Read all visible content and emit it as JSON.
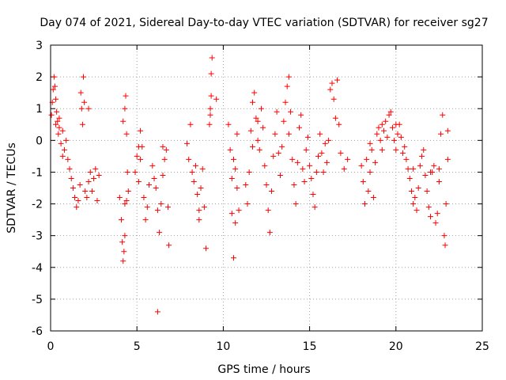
{
  "chart_data": {
    "type": "scatter",
    "title": "Day 074 of 2021, Sidereal Day-to-day VTEC variation (SDTVAR) for receiver sg27",
    "xlabel": "GPS time / hours",
    "ylabel": "SDTVAR / TECUs",
    "xlim": [
      0,
      25
    ],
    "ylim": [
      -6,
      3
    ],
    "xticks": [
      "0",
      "5",
      "10",
      "15",
      "20",
      "25"
    ],
    "yticks": [
      "3",
      "2",
      "1",
      "0",
      "-1",
      "-2",
      "-3",
      "-4",
      "-5",
      "-6"
    ],
    "grid": true,
    "marker": "+",
    "color": "#ff0000",
    "series": [
      {
        "name": "sg27",
        "points": [
          [
            0.05,
            0.8
          ],
          [
            0.1,
            1.2
          ],
          [
            0.15,
            1.6
          ],
          [
            0.2,
            2.0
          ],
          [
            0.25,
            1.7
          ],
          [
            0.3,
            1.3
          ],
          [
            0.35,
            0.9
          ],
          [
            0.4,
            0.6
          ],
          [
            0.45,
            0.2
          ],
          [
            0.5,
            0.4
          ],
          [
            0.6,
            -0.1
          ],
          [
            0.7,
            0.3
          ],
          [
            0.8,
            -0.3
          ],
          [
            0.9,
            0.0
          ],
          [
            1.0,
            -0.6
          ],
          [
            1.1,
            -0.9
          ],
          [
            1.2,
            -1.2
          ],
          [
            1.3,
            -1.5
          ],
          [
            1.4,
            -1.8
          ],
          [
            1.5,
            -2.1
          ],
          [
            1.6,
            -1.9
          ],
          [
            1.7,
            -1.4
          ],
          [
            1.75,
            1.5
          ],
          [
            1.8,
            1.0
          ],
          [
            1.85,
            0.5
          ],
          [
            1.9,
            2.0
          ],
          [
            1.95,
            1.2
          ],
          [
            2.0,
            -1.6
          ],
          [
            2.1,
            -1.8
          ],
          [
            2.2,
            -1.3
          ],
          [
            2.3,
            -1.0
          ],
          [
            2.4,
            -1.6
          ],
          [
            2.5,
            -1.2
          ],
          [
            2.6,
            -0.9
          ],
          [
            2.7,
            -1.9
          ],
          [
            2.8,
            -1.1
          ],
          [
            2.2,
            1.0
          ],
          [
            0.3,
            0.5
          ],
          [
            0.5,
            0.7
          ],
          [
            0.7,
            -0.5
          ],
          [
            4.0,
            -1.8
          ],
          [
            4.1,
            -2.5
          ],
          [
            4.15,
            -3.2
          ],
          [
            4.2,
            -3.8
          ],
          [
            4.25,
            -3.5
          ],
          [
            4.3,
            -2.0
          ],
          [
            4.2,
            0.6
          ],
          [
            4.3,
            1.0
          ],
          [
            4.35,
            1.4
          ],
          [
            4.4,
            0.2
          ],
          [
            4.45,
            -1.0
          ],
          [
            4.5,
            -1.6
          ],
          [
            4.3,
            -3.0
          ],
          [
            4.4,
            -1.9
          ],
          [
            4.9,
            -1.0
          ],
          [
            5.0,
            -0.5
          ],
          [
            5.1,
            -1.3
          ],
          [
            5.2,
            -0.6
          ],
          [
            5.3,
            -0.2
          ],
          [
            5.4,
            -1.8
          ],
          [
            5.5,
            -2.5
          ],
          [
            5.6,
            -2.1
          ],
          [
            5.7,
            -1.4
          ],
          [
            5.1,
            -0.2
          ],
          [
            5.2,
            0.3
          ],
          [
            5.9,
            -0.8
          ],
          [
            6.0,
            -1.2
          ],
          [
            6.1,
            -1.5
          ],
          [
            6.2,
            -2.2
          ],
          [
            6.3,
            -2.9
          ],
          [
            6.4,
            -2.0
          ],
          [
            6.5,
            -1.1
          ],
          [
            6.6,
            -0.6
          ],
          [
            6.7,
            -0.3
          ],
          [
            6.8,
            -2.1
          ],
          [
            6.85,
            -3.3
          ],
          [
            6.2,
            -5.4
          ],
          [
            6.5,
            -0.2
          ],
          [
            7.9,
            -0.1
          ],
          [
            8.0,
            -0.6
          ],
          [
            8.1,
            0.5
          ],
          [
            8.2,
            -1.0
          ],
          [
            8.3,
            -1.3
          ],
          [
            8.4,
            -0.8
          ],
          [
            8.5,
            -1.7
          ],
          [
            8.6,
            -2.2
          ],
          [
            8.7,
            -1.5
          ],
          [
            8.8,
            -0.9
          ],
          [
            8.9,
            -2.1
          ],
          [
            8.6,
            -2.5
          ],
          [
            9.2,
            0.5
          ],
          [
            9.25,
            1.0
          ],
          [
            9.3,
            1.4
          ],
          [
            9.3,
            2.1
          ],
          [
            9.35,
            2.6
          ],
          [
            9.25,
            0.8
          ],
          [
            9.0,
            -3.4
          ],
          [
            9.6,
            1.3
          ],
          [
            10.3,
            0.5
          ],
          [
            10.4,
            -0.3
          ],
          [
            10.5,
            -1.2
          ],
          [
            10.6,
            -0.6
          ],
          [
            10.7,
            -0.9
          ],
          [
            10.8,
            -1.5
          ],
          [
            10.9,
            -2.2
          ],
          [
            10.6,
            -3.7
          ],
          [
            10.7,
            -2.6
          ],
          [
            10.5,
            -2.3
          ],
          [
            10.8,
            0.2
          ],
          [
            11.3,
            -1.4
          ],
          [
            11.4,
            -2.0
          ],
          [
            11.5,
            -1.0
          ],
          [
            11.6,
            0.3
          ],
          [
            11.7,
            1.2
          ],
          [
            11.8,
            1.5
          ],
          [
            11.9,
            0.7
          ],
          [
            12.0,
            0.0
          ],
          [
            12.1,
            -0.3
          ],
          [
            12.2,
            1.0
          ],
          [
            12.3,
            0.4
          ],
          [
            12.4,
            -0.8
          ],
          [
            12.5,
            -1.4
          ],
          [
            12.6,
            -2.2
          ],
          [
            12.7,
            -2.9
          ],
          [
            12.8,
            -1.6
          ],
          [
            12.9,
            -0.5
          ],
          [
            13.0,
            0.2
          ],
          [
            13.1,
            0.9
          ],
          [
            13.2,
            -0.4
          ],
          [
            13.3,
            -1.1
          ],
          [
            13.4,
            -0.2
          ],
          [
            13.5,
            0.6
          ],
          [
            13.6,
            1.2
          ],
          [
            13.7,
            1.7
          ],
          [
            13.8,
            2.0
          ],
          [
            13.9,
            0.9
          ],
          [
            14.0,
            -0.6
          ],
          [
            14.1,
            -1.4
          ],
          [
            14.2,
            -2.0
          ],
          [
            14.3,
            -0.7
          ],
          [
            14.4,
            0.4
          ],
          [
            14.5,
            0.8
          ],
          [
            14.6,
            -0.9
          ],
          [
            14.7,
            -1.3
          ],
          [
            14.8,
            -0.3
          ],
          [
            14.9,
            0.1
          ],
          [
            15.0,
            -0.8
          ],
          [
            15.1,
            -1.2
          ],
          [
            15.2,
            -1.7
          ],
          [
            15.3,
            -2.1
          ],
          [
            15.4,
            -1.0
          ],
          [
            15.5,
            -0.5
          ],
          [
            15.6,
            0.2
          ],
          [
            15.7,
            -0.4
          ],
          [
            15.8,
            -1.0
          ],
          [
            15.9,
            -0.1
          ],
          [
            16.0,
            -0.7
          ],
          [
            16.1,
            0.0
          ],
          [
            16.2,
            1.6
          ],
          [
            16.3,
            1.8
          ],
          [
            16.4,
            1.3
          ],
          [
            16.5,
            0.7
          ],
          [
            16.6,
            1.9
          ],
          [
            16.7,
            0.5
          ],
          [
            16.8,
            -0.4
          ],
          [
            17.0,
            -0.9
          ],
          [
            17.2,
            -0.6
          ],
          [
            13.8,
            0.2
          ],
          [
            12.0,
            0.6
          ],
          [
            11.7,
            -0.2
          ],
          [
            18.0,
            -0.8
          ],
          [
            18.1,
            -1.3
          ],
          [
            18.2,
            -2.0
          ],
          [
            18.3,
            -0.6
          ],
          [
            18.4,
            -1.6
          ],
          [
            18.5,
            -1.0
          ],
          [
            18.6,
            -0.3
          ],
          [
            18.7,
            -1.8
          ],
          [
            18.8,
            -0.7
          ],
          [
            18.9,
            0.2
          ],
          [
            19.0,
            0.4
          ],
          [
            19.1,
            0.0
          ],
          [
            19.2,
            -0.3
          ],
          [
            19.3,
            0.3
          ],
          [
            19.4,
            0.6
          ],
          [
            19.5,
            0.1
          ],
          [
            19.6,
            0.8
          ],
          [
            19.7,
            0.9
          ],
          [
            19.8,
            0.4
          ],
          [
            19.9,
            0.0
          ],
          [
            20.0,
            -0.3
          ],
          [
            20.1,
            0.2
          ],
          [
            20.2,
            0.5
          ],
          [
            20.3,
            0.1
          ],
          [
            20.4,
            -0.4
          ],
          [
            20.5,
            -0.2
          ],
          [
            20.6,
            -0.6
          ],
          [
            20.7,
            -0.9
          ],
          [
            20.8,
            -1.2
          ],
          [
            20.9,
            -1.6
          ],
          [
            21.0,
            -2.0
          ],
          [
            21.1,
            -1.8
          ],
          [
            21.2,
            -2.2
          ],
          [
            21.3,
            -1.5
          ],
          [
            21.4,
            -0.8
          ],
          [
            21.5,
            -0.5
          ],
          [
            21.6,
            -0.3
          ],
          [
            21.7,
            -1.1
          ],
          [
            21.8,
            -1.6
          ],
          [
            21.9,
            -2.1
          ],
          [
            22.0,
            -2.4
          ],
          [
            22.1,
            -1.0
          ],
          [
            22.2,
            -0.8
          ],
          [
            22.3,
            -2.6
          ],
          [
            22.4,
            -2.3
          ],
          [
            22.5,
            -1.3
          ],
          [
            22.6,
            0.2
          ],
          [
            22.7,
            0.8
          ],
          [
            22.8,
            -3.0
          ],
          [
            22.85,
            -3.3
          ],
          [
            22.9,
            -2.0
          ],
          [
            23.0,
            -0.6
          ],
          [
            23.0,
            0.3
          ],
          [
            18.5,
            -0.1
          ],
          [
            19.2,
            0.5
          ],
          [
            20.0,
            0.5
          ],
          [
            21.0,
            -0.9
          ],
          [
            22.0,
            -1.0
          ],
          [
            22.5,
            -0.9
          ]
        ]
      }
    ]
  }
}
